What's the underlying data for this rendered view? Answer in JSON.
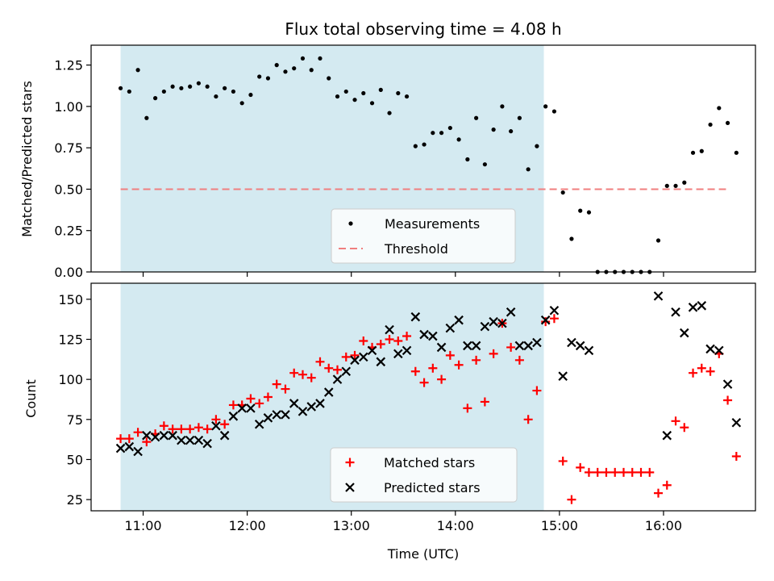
{
  "title": "Flux total observing time = 4.08 h",
  "xlabel": "Time (UTC)",
  "x_ticks": [
    "11:00",
    "12:00",
    "13:00",
    "14:00",
    "15:00",
    "16:00"
  ],
  "colors": {
    "shade": "#d4eaf1",
    "threshold": "#f07f7f",
    "matched": "#ff0000",
    "predicted": "#000000"
  },
  "chart_data": [
    {
      "type": "scatter",
      "panel": "top",
      "ylabel": "Matched/Predicted stars",
      "xlim": [
        "10:30",
        "16:53"
      ],
      "ylim": [
        0,
        1.37
      ],
      "y_ticks": [
        "0.00",
        "0.25",
        "0.50",
        "0.75",
        "1.00",
        "1.25"
      ],
      "shaded_region": [
        "10:47",
        "14:51"
      ],
      "threshold": {
        "name": "Threshold",
        "y": 0.5,
        "x_range": [
          "10:47",
          "16:36"
        ]
      },
      "legend": {
        "position": "lower center",
        "entries": [
          "Measurements",
          "Threshold"
        ]
      },
      "series": [
        {
          "name": "Measurements",
          "points": [
            [
              "10:47",
              1.11
            ],
            [
              "10:52",
              1.09
            ],
            [
              "10:57",
              1.22
            ],
            [
              "11:02",
              0.93
            ],
            [
              "11:07",
              1.05
            ],
            [
              "11:12",
              1.09
            ],
            [
              "11:17",
              1.12
            ],
            [
              "11:22",
              1.11
            ],
            [
              "11:27",
              1.12
            ],
            [
              "11:32",
              1.14
            ],
            [
              "11:37",
              1.12
            ],
            [
              "11:42",
              1.06
            ],
            [
              "11:47",
              1.11
            ],
            [
              "11:52",
              1.09
            ],
            [
              "11:57",
              1.02
            ],
            [
              "12:02",
              1.07
            ],
            [
              "12:07",
              1.18
            ],
            [
              "12:12",
              1.17
            ],
            [
              "12:17",
              1.25
            ],
            [
              "12:22",
              1.21
            ],
            [
              "12:27",
              1.23
            ],
            [
              "12:32",
              1.29
            ],
            [
              "12:37",
              1.22
            ],
            [
              "12:42",
              1.29
            ],
            [
              "12:47",
              1.17
            ],
            [
              "12:52",
              1.06
            ],
            [
              "12:57",
              1.09
            ],
            [
              "13:02",
              1.04
            ],
            [
              "13:07",
              1.08
            ],
            [
              "13:12",
              1.02
            ],
            [
              "13:17",
              1.1
            ],
            [
              "13:22",
              0.96
            ],
            [
              "13:27",
              1.08
            ],
            [
              "13:32",
              1.06
            ],
            [
              "13:37",
              0.76
            ],
            [
              "13:42",
              0.77
            ],
            [
              "13:47",
              0.84
            ],
            [
              "13:52",
              0.84
            ],
            [
              "13:57",
              0.87
            ],
            [
              "14:02",
              0.8
            ],
            [
              "14:07",
              0.68
            ],
            [
              "14:12",
              0.93
            ],
            [
              "14:17",
              0.65
            ],
            [
              "14:22",
              0.86
            ],
            [
              "14:27",
              1.0
            ],
            [
              "14:32",
              0.85
            ],
            [
              "14:37",
              0.93
            ],
            [
              "14:42",
              0.62
            ],
            [
              "14:47",
              0.76
            ],
            [
              "14:52",
              1.0
            ],
            [
              "14:57",
              0.97
            ],
            [
              "15:02",
              0.48
            ],
            [
              "15:07",
              0.2
            ],
            [
              "15:12",
              0.37
            ],
            [
              "15:17",
              0.36
            ],
            [
              "15:22",
              0.0
            ],
            [
              "15:27",
              0.0
            ],
            [
              "15:32",
              0.0
            ],
            [
              "15:37",
              0.0
            ],
            [
              "15:42",
              0.0
            ],
            [
              "15:47",
              0.0
            ],
            [
              "15:52",
              0.0
            ],
            [
              "15:57",
              0.19
            ],
            [
              "16:02",
              0.52
            ],
            [
              "16:07",
              0.52
            ],
            [
              "16:12",
              0.54
            ],
            [
              "16:17",
              0.72
            ],
            [
              "16:22",
              0.73
            ],
            [
              "16:27",
              0.89
            ],
            [
              "16:32",
              0.99
            ],
            [
              "16:37",
              0.9
            ],
            [
              "16:42",
              0.72
            ]
          ]
        }
      ]
    },
    {
      "type": "scatter",
      "panel": "bottom",
      "ylabel": "Count",
      "xlim": [
        "10:30",
        "16:53"
      ],
      "ylim": [
        18,
        160
      ],
      "y_ticks": [
        "25",
        "50",
        "75",
        "100",
        "125",
        "150"
      ],
      "shaded_region": [
        "10:47",
        "14:51"
      ],
      "legend": {
        "position": "lower center",
        "entries": [
          "Matched stars",
          "Predicted stars"
        ]
      },
      "series": [
        {
          "name": "Matched stars",
          "marker": "plus",
          "points": [
            [
              "10:47",
              63
            ],
            [
              "10:52",
              63
            ],
            [
              "10:57",
              67
            ],
            [
              "11:02",
              61
            ],
            [
              "11:07",
              66
            ],
            [
              "11:12",
              71
            ],
            [
              "11:17",
              69
            ],
            [
              "11:22",
              69
            ],
            [
              "11:27",
              69
            ],
            [
              "11:32",
              70
            ],
            [
              "11:37",
              69
            ],
            [
              "11:42",
              75
            ],
            [
              "11:47",
              72
            ],
            [
              "11:52",
              84
            ],
            [
              "11:57",
              84
            ],
            [
              "12:02",
              88
            ],
            [
              "12:07",
              85
            ],
            [
              "12:12",
              89
            ],
            [
              "12:17",
              97
            ],
            [
              "12:22",
              94
            ],
            [
              "12:27",
              104
            ],
            [
              "12:32",
              103
            ],
            [
              "12:37",
              101
            ],
            [
              "12:42",
              111
            ],
            [
              "12:47",
              107
            ],
            [
              "12:52",
              106
            ],
            [
              "12:57",
              114
            ],
            [
              "13:02",
              115
            ],
            [
              "13:07",
              124
            ],
            [
              "13:12",
              120
            ],
            [
              "13:17",
              122
            ],
            [
              "13:22",
              125
            ],
            [
              "13:27",
              124
            ],
            [
              "13:32",
              127
            ],
            [
              "13:37",
              105
            ],
            [
              "13:42",
              98
            ],
            [
              "13:47",
              107
            ],
            [
              "13:52",
              100
            ],
            [
              "13:57",
              115
            ],
            [
              "14:02",
              109
            ],
            [
              "14:07",
              82
            ],
            [
              "14:12",
              112
            ],
            [
              "14:17",
              86
            ],
            [
              "14:22",
              116
            ],
            [
              "14:27",
              135
            ],
            [
              "14:32",
              120
            ],
            [
              "14:37",
              112
            ],
            [
              "14:42",
              75
            ],
            [
              "14:47",
              93
            ],
            [
              "14:52",
              136
            ],
            [
              "14:57",
              138
            ],
            [
              "15:02",
              49
            ],
            [
              "15:07",
              25
            ],
            [
              "15:12",
              45
            ],
            [
              "15:17",
              42
            ],
            [
              "15:22",
              42
            ],
            [
              "15:27",
              42
            ],
            [
              "15:32",
              42
            ],
            [
              "15:37",
              42
            ],
            [
              "15:42",
              42
            ],
            [
              "15:47",
              42
            ],
            [
              "15:52",
              42
            ],
            [
              "15:57",
              29
            ],
            [
              "16:02",
              34
            ],
            [
              "16:07",
              74
            ],
            [
              "16:12",
              70
            ],
            [
              "16:17",
              104
            ],
            [
              "16:22",
              107
            ],
            [
              "16:27",
              105
            ],
            [
              "16:32",
              116
            ],
            [
              "16:37",
              87
            ],
            [
              "16:42",
              52
            ]
          ]
        },
        {
          "name": "Predicted stars",
          "marker": "x",
          "points": [
            [
              "10:47",
              57
            ],
            [
              "10:52",
              58
            ],
            [
              "10:57",
              55
            ],
            [
              "11:02",
              65
            ],
            [
              "11:07",
              64
            ],
            [
              "11:12",
              65
            ],
            [
              "11:17",
              65
            ],
            [
              "11:22",
              62
            ],
            [
              "11:27",
              62
            ],
            [
              "11:32",
              62
            ],
            [
              "11:37",
              60
            ],
            [
              "11:42",
              71
            ],
            [
              "11:47",
              65
            ],
            [
              "11:52",
              77
            ],
            [
              "11:57",
              82
            ],
            [
              "12:02",
              82
            ],
            [
              "12:07",
              72
            ],
            [
              "12:12",
              76
            ],
            [
              "12:17",
              78
            ],
            [
              "12:22",
              78
            ],
            [
              "12:27",
              85
            ],
            [
              "12:32",
              80
            ],
            [
              "12:37",
              83
            ],
            [
              "12:42",
              85
            ],
            [
              "12:47",
              92
            ],
            [
              "12:52",
              100
            ],
            [
              "12:57",
              105
            ],
            [
              "13:02",
              112
            ],
            [
              "13:07",
              114
            ],
            [
              "13:12",
              118
            ],
            [
              "13:17",
              111
            ],
            [
              "13:22",
              131
            ],
            [
              "13:27",
              116
            ],
            [
              "13:32",
              118
            ],
            [
              "13:37",
              139
            ],
            [
              "13:42",
              128
            ],
            [
              "13:47",
              127
            ],
            [
              "13:52",
              120
            ],
            [
              "13:57",
              132
            ],
            [
              "14:02",
              137
            ],
            [
              "14:07",
              121
            ],
            [
              "14:12",
              121
            ],
            [
              "14:17",
              133
            ],
            [
              "14:22",
              136
            ],
            [
              "14:27",
              135
            ],
            [
              "14:32",
              142
            ],
            [
              "14:37",
              121
            ],
            [
              "14:42",
              121
            ],
            [
              "14:47",
              123
            ],
            [
              "14:52",
              137
            ],
            [
              "14:57",
              143
            ],
            [
              "15:02",
              102
            ],
            [
              "15:07",
              123
            ],
            [
              "15:12",
              121
            ],
            [
              "15:17",
              118
            ],
            [
              "15:57",
              152
            ],
            [
              "16:02",
              65
            ],
            [
              "16:07",
              142
            ],
            [
              "16:12",
              129
            ],
            [
              "16:17",
              145
            ],
            [
              "16:22",
              146
            ],
            [
              "16:27",
              119
            ],
            [
              "16:32",
              118
            ],
            [
              "16:37",
              97
            ],
            [
              "16:42",
              73
            ]
          ]
        }
      ]
    }
  ]
}
